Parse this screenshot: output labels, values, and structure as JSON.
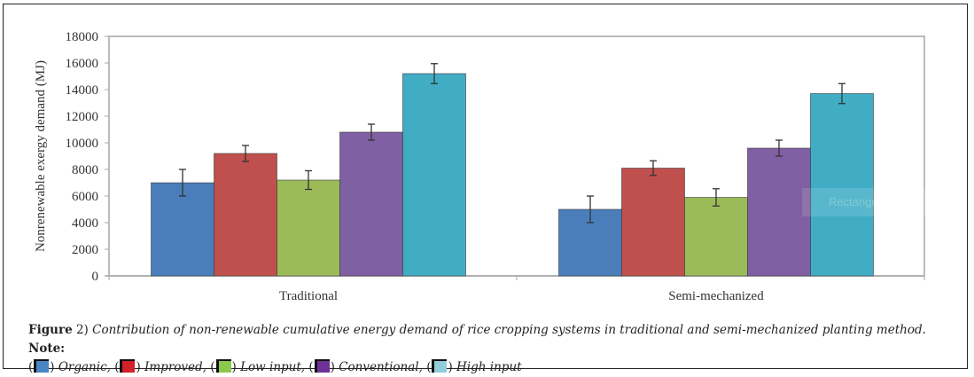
{
  "chart_data": {
    "type": "bar",
    "title": "",
    "xlabel": "",
    "ylabel": "Nonrenewable exergy demand (MJ)",
    "ylim": [
      0,
      18000
    ],
    "yticks": [
      0,
      2000,
      4000,
      6000,
      8000,
      10000,
      12000,
      14000,
      16000,
      18000
    ],
    "grid": false,
    "categories": [
      "Traditional",
      "Semi-mechanized"
    ],
    "series": [
      {
        "name": "Organic",
        "color": "#4a7ebb",
        "values": [
          7000,
          5000
        ],
        "errors": [
          1000,
          1000
        ]
      },
      {
        "name": "Improved",
        "color": "#c0504d",
        "values": [
          9200,
          8100
        ],
        "errors": [
          600,
          550
        ]
      },
      {
        "name": "Low input",
        "color": "#9bbb59",
        "values": [
          7200,
          5900
        ],
        "errors": [
          700,
          650
        ]
      },
      {
        "name": "Conventional",
        "color": "#7f60a2",
        "values": [
          10800,
          9600
        ],
        "errors": [
          600,
          600
        ]
      },
      {
        "name": "High input",
        "color": "#41adc5",
        "values": [
          15200,
          13700
        ],
        "errors": [
          750,
          750
        ]
      }
    ]
  },
  "caption": {
    "figure_label": "Figure",
    "figure_number": "2)",
    "text": "Contribution of non-renewable cumulative energy demand of rice cropping systems in traditional and semi-mechanized planting method.",
    "note_label": "Note:",
    "legend": [
      {
        "label": "Organic,",
        "swatch_color": "#4a86c6"
      },
      {
        "label": "Improved,",
        "swatch_color": "#d0202a"
      },
      {
        "label": "Low input,",
        "swatch_color": "#8cc84b"
      },
      {
        "label": "Conventional,",
        "swatch_color": "#6f3097"
      },
      {
        "label": "High input",
        "swatch_color": "#92cddc"
      }
    ]
  },
  "overlay": {
    "watermark_text": "Rectangular Snip"
  }
}
